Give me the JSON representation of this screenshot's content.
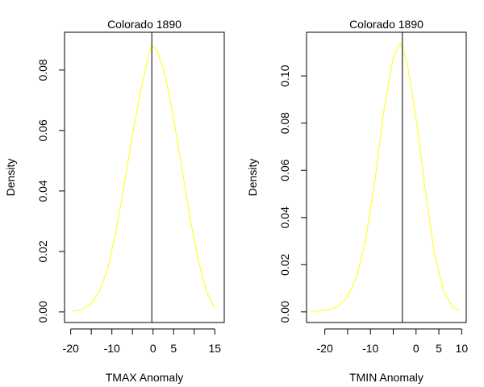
{
  "chart_data": [
    {
      "type": "line",
      "title": "Colorado 1890",
      "xlabel": "TMAX Anomaly",
      "ylabel": "Density",
      "xlim": [
        -21.5,
        17.3
      ],
      "ylim": [
        -0.0035,
        0.0925
      ],
      "xticks": [
        -20,
        -15,
        -10,
        -5,
        0,
        5,
        10,
        15
      ],
      "xtick_labels": [
        "-20",
        "",
        "-10",
        "",
        "0",
        "5",
        "",
        "15"
      ],
      "yticks": [
        0.0,
        0.02,
        0.04,
        0.06,
        0.08
      ],
      "ytick_labels": [
        "0.00",
        "0.02",
        "0.04",
        "0.06",
        "0.08"
      ],
      "vline": -0.3,
      "grid": false,
      "series": [
        {
          "color": "#ffff00",
          "x": [
            -19.5,
            -17.0,
            -15.0,
            -13.0,
            -11.0,
            -9.0,
            -7.0,
            -5.0,
            -3.0,
            -1.0,
            -0.3,
            1.0,
            3.0,
            5.0,
            7.0,
            9.0,
            11.0,
            13.0,
            15.0
          ],
          "y": [
            0.0002,
            0.0009,
            0.0027,
            0.0068,
            0.0145,
            0.0266,
            0.042,
            0.0585,
            0.0731,
            0.0855,
            0.088,
            0.0866,
            0.078,
            0.064,
            0.048,
            0.031,
            0.017,
            0.0066,
            0.0012
          ]
        }
      ]
    },
    {
      "type": "line",
      "title": "Colorado 1890",
      "xlabel": "TMIN Anomaly",
      "ylabel": "Density",
      "xlim": [
        -24.0,
        11.0
      ],
      "ylim": [
        -0.0045,
        0.1185
      ],
      "xticks": [
        -20,
        -15,
        -10,
        -5,
        0,
        5,
        10
      ],
      "xtick_labels": [
        "-20",
        "",
        "-10",
        "",
        "0",
        "5",
        "10"
      ],
      "yticks": [
        0.0,
        0.02,
        0.04,
        0.06,
        0.08,
        0.1
      ],
      "ytick_labels": [
        "0.00",
        "0.02",
        "0.04",
        "0.06",
        "0.08",
        "0.10"
      ],
      "vline": -3.0,
      "grid": false,
      "series": [
        {
          "color": "#ffff00",
          "x": [
            -23.0,
            -21.0,
            -19.0,
            -17.0,
            -15.0,
            -13.0,
            -11.0,
            -9.0,
            -7.0,
            -5.0,
            -3.5,
            -2.0,
            0.0,
            2.0,
            4.0,
            6.0,
            8.0,
            9.5
          ],
          "y": [
            0.0002,
            0.0005,
            0.001,
            0.0025,
            0.0065,
            0.015,
            0.031,
            0.056,
            0.086,
            0.108,
            0.114,
            0.106,
            0.082,
            0.052,
            0.025,
            0.009,
            0.002,
            0.0006
          ]
        }
      ]
    }
  ]
}
